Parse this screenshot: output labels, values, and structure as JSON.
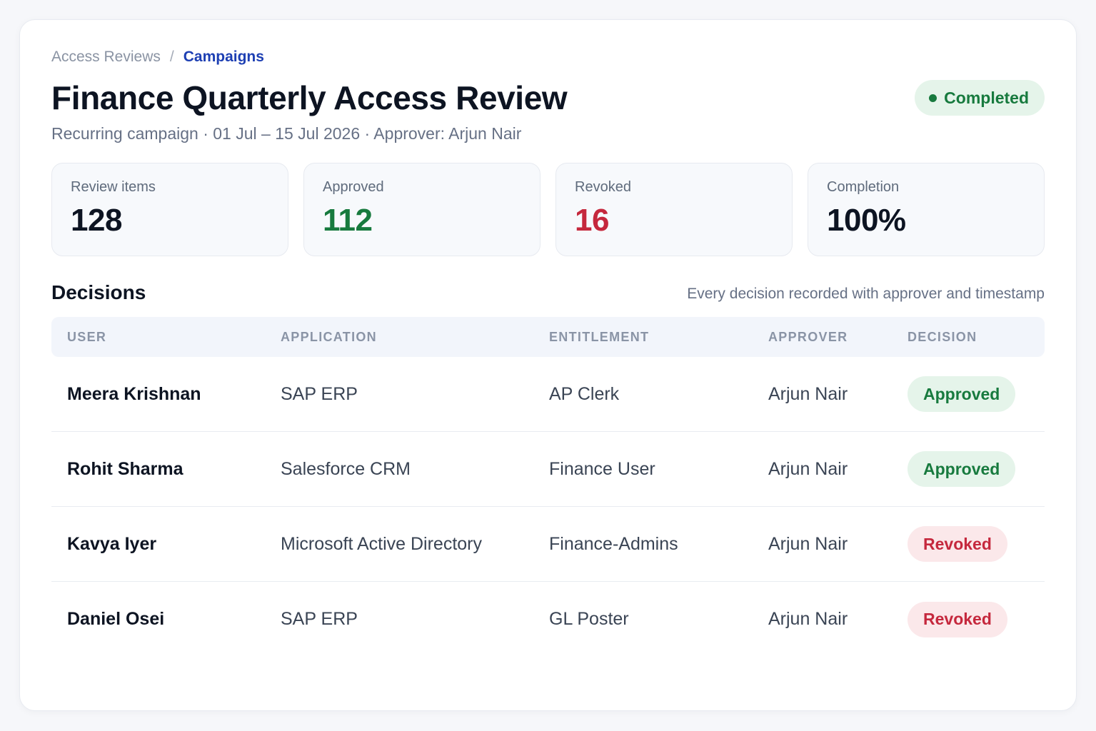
{
  "breadcrumb": {
    "root": "Access Reviews",
    "separator": "/",
    "current": "Campaigns"
  },
  "header": {
    "title": "Finance Quarterly Access Review",
    "subtitle": "Recurring campaign · 01 Jul – 15 Jul 2026 · Approver: Arjun Nair",
    "status": "Completed"
  },
  "stats": [
    {
      "label": "Review items",
      "value": "128",
      "color": "#0d1422"
    },
    {
      "label": "Approved",
      "value": "112",
      "color": "#177a3e"
    },
    {
      "label": "Revoked",
      "value": "16",
      "color": "#c5283d"
    },
    {
      "label": "Completion",
      "value": "100%",
      "color": "#0d1422"
    }
  ],
  "decisions": {
    "title": "Decisions",
    "note": "Every decision recorded with approver and timestamp",
    "columns": [
      "User",
      "Application",
      "Entitlement",
      "Approver",
      "Decision"
    ],
    "rows": [
      {
        "user": "Meera Krishnan",
        "application": "SAP ERP",
        "entitlement": "AP Clerk",
        "approver": "Arjun Nair",
        "decision": "Approved",
        "decision_type": "approved"
      },
      {
        "user": "Rohit Sharma",
        "application": "Salesforce CRM",
        "entitlement": "Finance User",
        "approver": "Arjun Nair",
        "decision": "Approved",
        "decision_type": "approved"
      },
      {
        "user": "Kavya Iyer",
        "application": "Microsoft Active Directory",
        "entitlement": "Finance-Admins",
        "approver": "Arjun Nair",
        "decision": "Revoked",
        "decision_type": "revoked"
      },
      {
        "user": "Daniel Osei",
        "application": "SAP ERP",
        "entitlement": "GL Poster",
        "approver": "Arjun Nair",
        "decision": "Revoked",
        "decision_type": "revoked"
      }
    ]
  },
  "colors": {
    "approved": "#177a3e",
    "revoked": "#c5283d",
    "accent": "#1d3fb3"
  }
}
